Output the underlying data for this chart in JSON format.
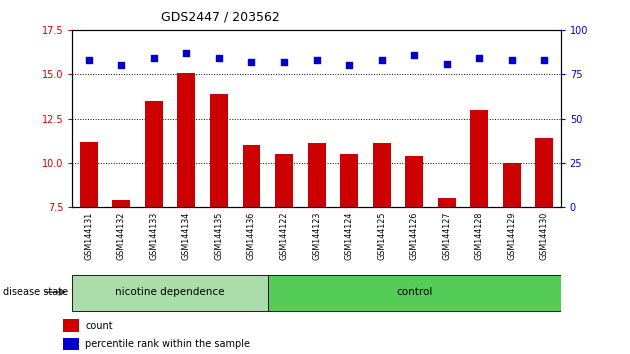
{
  "title": "GDS2447 / 203562",
  "categories": [
    "GSM144131",
    "GSM144132",
    "GSM144133",
    "GSM144134",
    "GSM144135",
    "GSM144136",
    "GSM144122",
    "GSM144123",
    "GSM144124",
    "GSM144125",
    "GSM144126",
    "GSM144127",
    "GSM144128",
    "GSM144129",
    "GSM144130"
  ],
  "count_values": [
    11.2,
    7.9,
    13.5,
    15.1,
    13.9,
    11.0,
    10.5,
    11.1,
    10.5,
    11.1,
    10.4,
    8.0,
    13.0,
    10.0,
    11.4
  ],
  "percentile_values": [
    83,
    80,
    84,
    87,
    84,
    82,
    82,
    83,
    80,
    83,
    86,
    81,
    84,
    83,
    83
  ],
  "ylim_left": [
    7.5,
    17.5
  ],
  "ylim_right": [
    0,
    100
  ],
  "yticks_left": [
    7.5,
    10.0,
    12.5,
    15.0,
    17.5
  ],
  "yticks_right": [
    0,
    25,
    50,
    75,
    100
  ],
  "bar_color": "#cc0000",
  "dot_color": "#0000cc",
  "group1_label": "nicotine dependence",
  "group2_label": "control",
  "group1_count": 6,
  "group2_count": 9,
  "group1_color": "#aaddaa",
  "group2_color": "#55cc55",
  "legend_count_label": "count",
  "legend_percentile_label": "percentile rank within the sample",
  "disease_state_label": "disease state",
  "background_color": "#ffffff",
  "tick_label_area_color": "#d0d0d0"
}
